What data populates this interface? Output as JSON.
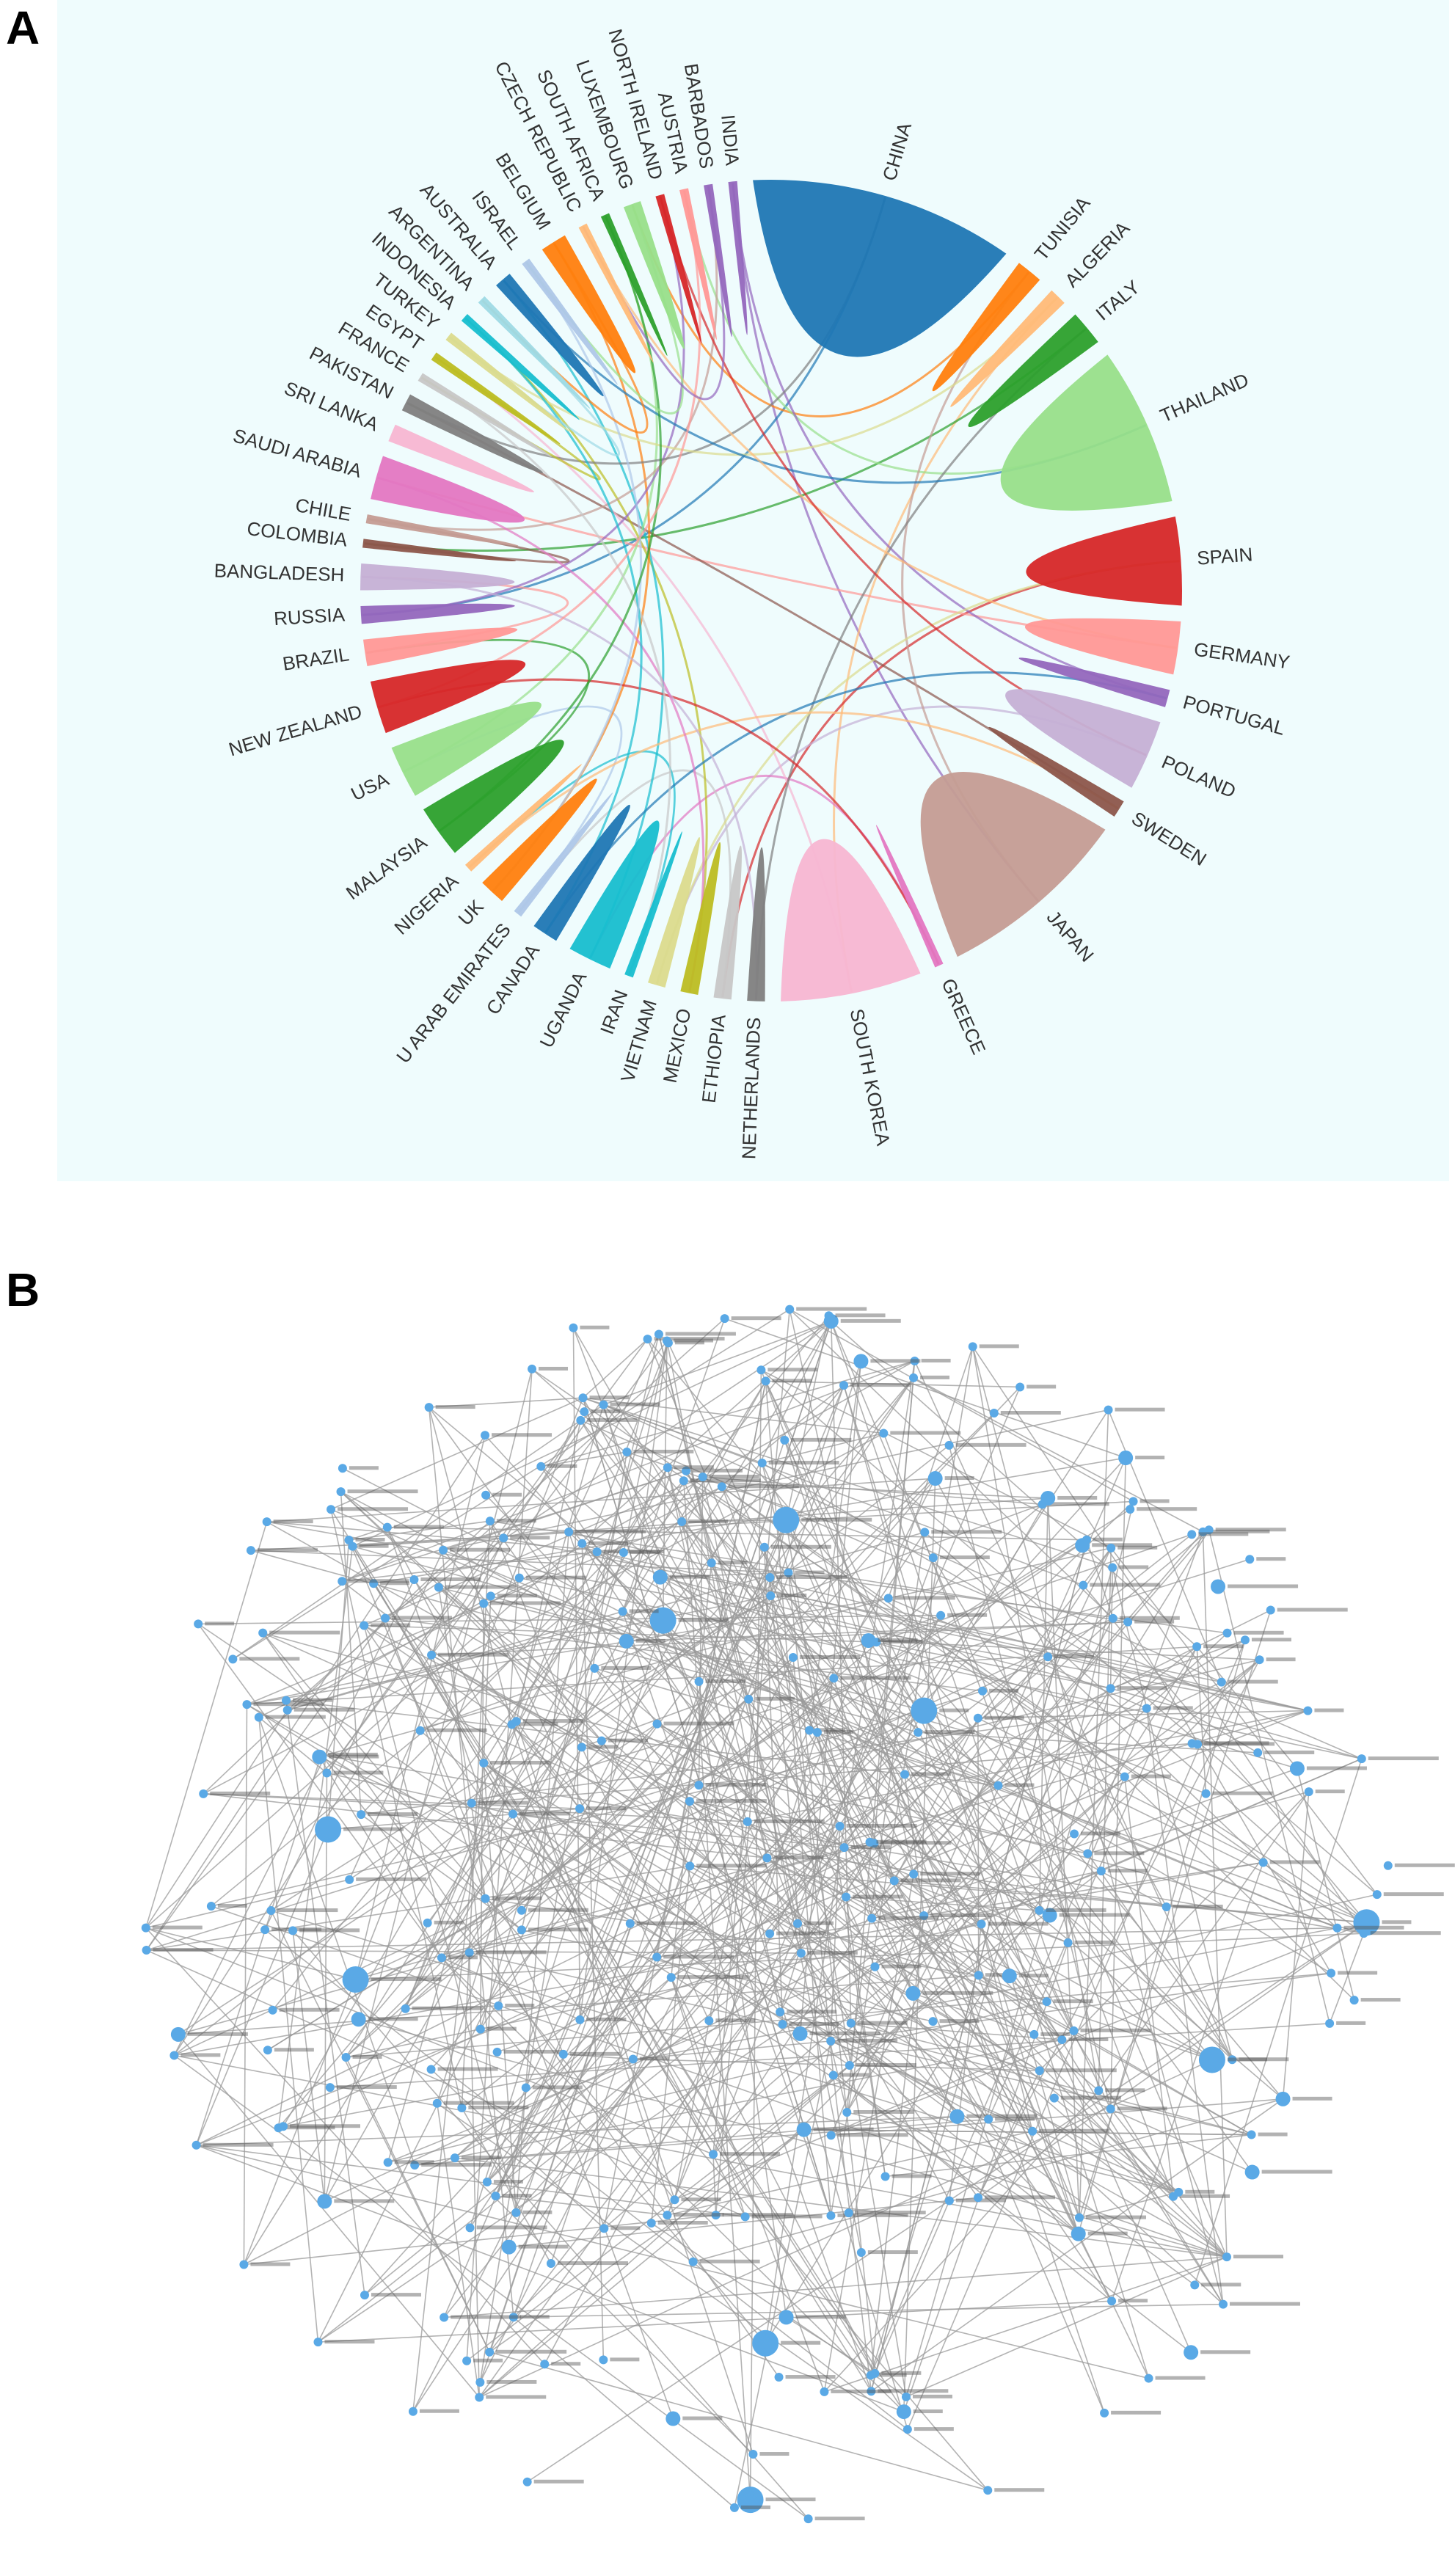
{
  "panel_labels": [
    "A",
    "B"
  ],
  "chart_data": {
    "type": "chord",
    "categories": [
      "INDIA",
      "CHINA",
      "TUNISIA",
      "ALGERIA",
      "ITALY",
      "THAILAND",
      "SPAIN",
      "GERMANY",
      "PORTUGAL",
      "POLAND",
      "SWEDEN",
      "JAPAN",
      "GREECE",
      "SOUTH KOREA",
      "NETHERLANDS",
      "ETHIOPIA",
      "MEXICO",
      "VIETNAM",
      "IRAN",
      "UGANDA",
      "CANADA",
      "U ARAB EMIRATES",
      "UK",
      "NIGERIA",
      "MALAYSIA",
      "USA",
      "NEW ZEALAND",
      "BRAZIL",
      "RUSSIA",
      "BANGLADESH",
      "COLOMBIA",
      "CHILE",
      "SAUDI ARABIA",
      "SRI LANKA",
      "PAKISTAN",
      "FRANCE",
      "EGYPT",
      "TURKEY",
      "INDONESIA",
      "ARGENTINA",
      "AUSTRALIA",
      "ISRAEL",
      "BELGIUM",
      "CZECH REPUBLIC",
      "SOUTH AFRICA",
      "LUXEMBOURG",
      "NORTH IRELAND",
      "AUSTRIA",
      "BARBADOS"
    ],
    "values": [
      1,
      30,
      3,
      2,
      4,
      18,
      10,
      6,
      2,
      8,
      2,
      22,
      1,
      16,
      2,
      2,
      2,
      2,
      1,
      5,
      3,
      1,
      3,
      1,
      6,
      6,
      6,
      3,
      2,
      3,
      1,
      1,
      5,
      2,
      2,
      1,
      1,
      1,
      1,
      1,
      2,
      1,
      3,
      1,
      1,
      2,
      1,
      1,
      1
    ],
    "colors": [
      "#9467bd",
      "#1f77b4",
      "#ff7f0e",
      "#ffbb78",
      "#2ca02c",
      "#98df8a",
      "#d62728",
      "#ff9896",
      "#9467bd",
      "#c5b0d5",
      "#8c564b",
      "#c49c94",
      "#e377c2",
      "#f7b6d2",
      "#7f7f7f",
      "#c7c7c7",
      "#bcbd22",
      "#dbdb8d",
      "#17becf",
      "#17becf",
      "#1f77b4",
      "#aec7e8",
      "#ff7f0e",
      "#ffbb78",
      "#2ca02c",
      "#98df8a",
      "#d62728",
      "#ff9896",
      "#9467bd",
      "#c5b0d5",
      "#8c564b",
      "#c49c94",
      "#e377c2",
      "#f7b6d2",
      "#7f7f7f",
      "#c7c7c7",
      "#bcbd22",
      "#dbdb8d",
      "#17becf",
      "#9edae5",
      "#1f77b4",
      "#aec7e8",
      "#ff7f0e",
      "#ffbb78",
      "#2ca02c",
      "#98df8a",
      "#d62728",
      "#ff9896",
      "#9467bd"
    ]
  }
}
